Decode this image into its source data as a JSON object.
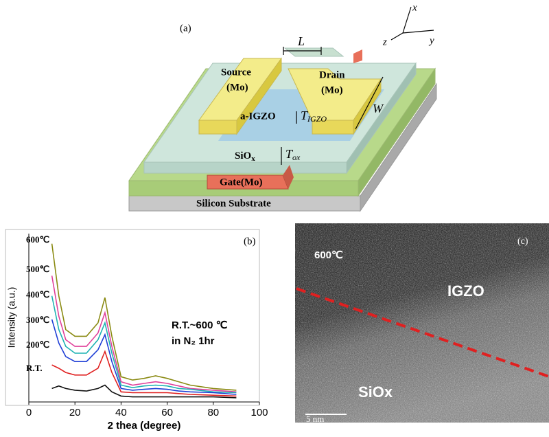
{
  "panel_a": {
    "label": "(a)",
    "axes": [
      "x",
      "y",
      "z"
    ],
    "channel_length": "L",
    "channel_width": "W",
    "source": [
      "Source",
      "(Mo)"
    ],
    "drain": [
      "Drain",
      "(Mo)"
    ],
    "channel": "a-IGZO",
    "channel_thickness": {
      "symbol": "T",
      "subscript": "IGZO"
    },
    "dielectric": {
      "text": "SiO",
      "subscript": "x"
    },
    "dielectric_thickness": {
      "symbol": "T",
      "subscript": "ox"
    },
    "gate": "Gate(Mo)",
    "substrate": "Silicon Substrate"
  },
  "chart_data": {
    "type": "line",
    "panel_label": "(b)",
    "x_label": "2 thea (degree)",
    "y_label": "Intensity (a.u.)",
    "annotation": [
      "R.T.~600 ℃",
      "in N₂ 1hr"
    ],
    "x": [
      10,
      13,
      16,
      20,
      25,
      30,
      33,
      36,
      40,
      45,
      50,
      55,
      60,
      65,
      70,
      80,
      90
    ],
    "series": [
      {
        "name": "600℃",
        "color": "#8a8a12",
        "values": [
          9.4,
          6.3,
          4.3,
          3.9,
          3.9,
          4.7,
          6.2,
          3.9,
          1.5,
          1.3,
          1.4,
          1.55,
          1.4,
          1.2,
          1.0,
          0.8,
          0.7
        ]
      },
      {
        "name": "500℃",
        "color": "#e0409a",
        "values": [
          7.5,
          5.1,
          3.7,
          3.3,
          3.3,
          4.1,
          5.3,
          3.3,
          1.2,
          1.0,
          1.1,
          1.2,
          1.1,
          0.95,
          0.8,
          0.7,
          0.6
        ]
      },
      {
        "name": "400℃",
        "color": "#1fb3b3",
        "values": [
          6.3,
          4.3,
          3.3,
          2.9,
          2.9,
          3.7,
          4.7,
          2.9,
          1.0,
          0.85,
          0.95,
          1.0,
          0.95,
          0.8,
          0.75,
          0.6,
          0.55
        ]
      },
      {
        "name": "300℃",
        "color": "#1f3fd6",
        "values": [
          4.9,
          3.5,
          2.7,
          2.4,
          2.4,
          3.1,
          4.0,
          2.4,
          0.8,
          0.7,
          0.75,
          0.8,
          0.75,
          0.65,
          0.6,
          0.55,
          0.45
        ]
      },
      {
        "name": "200℃",
        "color": "#e02020",
        "values": [
          2.2,
          2.0,
          1.75,
          1.6,
          1.6,
          2.0,
          3.0,
          1.75,
          0.6,
          0.55,
          0.55,
          0.55,
          0.55,
          0.5,
          0.45,
          0.4,
          0.35
        ]
      },
      {
        "name": "R.T.",
        "color": "#111111",
        "values": [
          0.8,
          0.95,
          0.8,
          0.7,
          0.65,
          0.8,
          1.0,
          0.6,
          0.35,
          0.3,
          0.3,
          0.3,
          0.3,
          0.3,
          0.3,
          0.3,
          0.25
        ]
      }
    ],
    "xlim": [
      0,
      100
    ],
    "xticks": [
      0,
      20,
      40,
      60,
      80,
      100
    ],
    "ylim": [
      0,
      10
    ]
  },
  "panel_c": {
    "label": "(c)",
    "temperature": "600℃",
    "upper_layer": "IGZO",
    "lower_layer": "SiOx",
    "scale_bar": "5 nm"
  }
}
